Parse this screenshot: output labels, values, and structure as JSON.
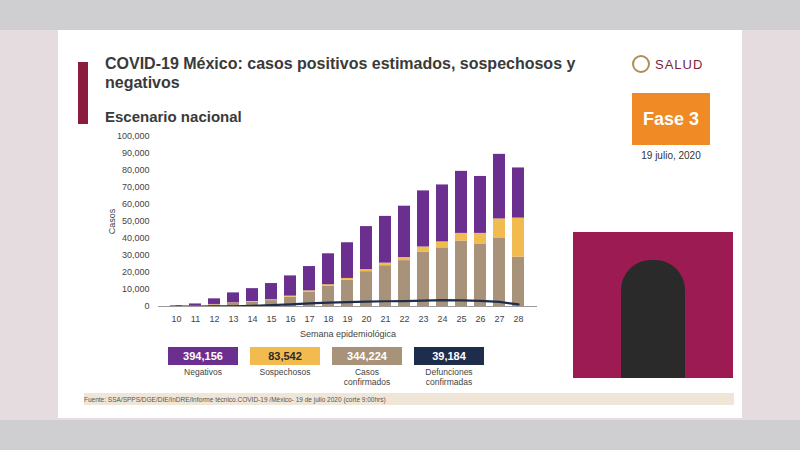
{
  "chart_data": {
    "type": "bar",
    "stacked": true,
    "title": "COVID-19 México: casos positivos estimados, sospechosos y negativos",
    "subtitle": "Escenario nacional",
    "x_label": "Semana epidemiológica",
    "y_label": "Casos",
    "categories": [
      10,
      11,
      12,
      13,
      14,
      15,
      16,
      17,
      18,
      19,
      20,
      21,
      22,
      23,
      24,
      25,
      26,
      27,
      28
    ],
    "series": [
      {
        "name": "Casos confirmados",
        "color": "#a8937a",
        "total": {
          "value": 344224,
          "label": "344,224"
        },
        "values": [
          100,
          400,
          1000,
          1800,
          2500,
          3500,
          5500,
          8500,
          12000,
          15500,
          20500,
          24000,
          27000,
          32000,
          34500,
          38500,
          36500,
          40000,
          29000
        ]
      },
      {
        "name": "Sospechosos",
        "color": "#f2bb4f",
        "total": {
          "value": 83542,
          "label": "83,542"
        },
        "values": [
          50,
          100,
          200,
          300,
          400,
          500,
          600,
          700,
          800,
          1000,
          1200,
          1500,
          1800,
          3000,
          3500,
          4500,
          6500,
          11500,
          23000
        ]
      },
      {
        "name": "Negativos",
        "color": "#6b2f8f",
        "total": {
          "value": 394156,
          "label": "394,156"
        },
        "values": [
          350,
          1000,
          3300,
          5900,
          7600,
          9500,
          11900,
          14300,
          18200,
          21000,
          25300,
          27500,
          30200,
          33000,
          33500,
          36500,
          33500,
          38000,
          29500
        ]
      },
      {
        "name": "Defunciones confirmadas",
        "color": "#1f2d4d",
        "type": "line",
        "total": {
          "value": 39184,
          "label": "39,184"
        },
        "values": [
          0,
          10,
          50,
          150,
          400,
          800,
          1300,
          1800,
          2300,
          2600,
          2900,
          3100,
          3200,
          3500,
          3700,
          3600,
          3300,
          2700,
          1200
        ]
      }
    ],
    "legend_order": [
      "Negativos",
      "Sospechosos",
      "Casos confirmados",
      "Defunciones confirmadas"
    ],
    "ylim": [
      0,
      100000
    ],
    "yticks": [
      0,
      {
        "value": 10000,
        "label": "10,000"
      },
      {
        "value": 20000,
        "label": "20,000"
      },
      {
        "value": 30000,
        "label": "30,000"
      },
      {
        "value": 40000,
        "label": "40,000"
      },
      {
        "value": 50000,
        "label": "50,000"
      },
      {
        "value": 60000,
        "label": "60,000"
      },
      {
        "value": 70000,
        "label": "70,000"
      },
      {
        "value": 80000,
        "label": "80,000"
      },
      {
        "value": 90000,
        "label": "90,000"
      },
      {
        "value": 100000,
        "label": "100,000"
      }
    ],
    "grid": false,
    "legend": "bottom"
  },
  "slide": {
    "logo": "SALUD",
    "phase": "Fase 3",
    "date": "19 julio, 2020",
    "source": "Fuente: SSA/SPPS/DGE/DIE/InDRE/Informe técnico.COVID-19 /México- 19 de julio 2020 (corte 9:00hrs)"
  }
}
